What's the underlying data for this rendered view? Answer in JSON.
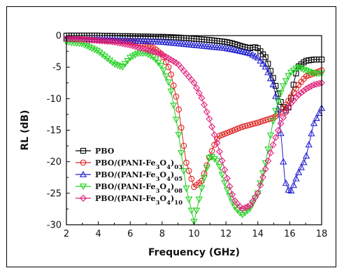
{
  "chart_data": {
    "type": "line",
    "title": "",
    "xlabel": "Frequency (GHz)",
    "ylabel": "RL (dB)",
    "xlim": [
      2,
      18
    ],
    "ylim": [
      -30,
      0
    ],
    "xticks": [
      "2",
      "4",
      "6",
      "8",
      "10",
      "12",
      "14",
      "16",
      "18"
    ],
    "yticks": [
      "0",
      "-5",
      "-10",
      "-15",
      "-20",
      "-25",
      "-30"
    ],
    "grid": false,
    "legend_position": "lower-left",
    "series": [
      {
        "name": "PBO",
        "color": "#000000",
        "marker": "square",
        "x": [
          2,
          4,
          6,
          8,
          9,
          10,
          11,
          12,
          12.5,
          13,
          13.5,
          13.8,
          14,
          14.5,
          15,
          15.5,
          15.8,
          16,
          16.3,
          16.5,
          17,
          17.5,
          18
        ],
        "y": [
          0,
          0,
          -0.1,
          -0.2,
          -0.3,
          -0.5,
          -0.7,
          -1,
          -1.3,
          -1.7,
          -2,
          -1.8,
          -2,
          -3.5,
          -7,
          -11,
          -12,
          -11,
          -7,
          -5,
          -4,
          -3.8,
          -3.8
        ]
      },
      {
        "name": "PBO/(PANI-Fe3O4)03",
        "color": "#e02020",
        "marker": "circle",
        "x": [
          2,
          3,
          4,
          5,
          6,
          7,
          7.5,
          8,
          8.5,
          9,
          9.5,
          10,
          10.5,
          11,
          11.5,
          12,
          13,
          14,
          15,
          15.5,
          16,
          16.5,
          17,
          17.5,
          18
        ],
        "y": [
          -0.5,
          -0.6,
          -0.7,
          -0.8,
          -1,
          -1.4,
          -2,
          -3,
          -5.5,
          -11,
          -20,
          -24,
          -23,
          -19,
          -16,
          -15.5,
          -14.5,
          -13.8,
          -13,
          -12,
          -10,
          -8,
          -6.5,
          -6,
          -5.5
        ]
      },
      {
        "name": "PBO/(PANI-Fe3O4)05",
        "color": "#2020d0",
        "marker": "triangle-up",
        "x": [
          2,
          4,
          6,
          8,
          10,
          12,
          13,
          13.5,
          14,
          14.5,
          15,
          15.3,
          15.5,
          15.7,
          16,
          16.2,
          16.5,
          17,
          17.5,
          18
        ],
        "y": [
          -0.5,
          -0.6,
          -0.8,
          -1,
          -1.5,
          -2,
          -2.5,
          -2.8,
          -3.5,
          -5,
          -8,
          -12,
          -17,
          -23,
          -25,
          -24,
          -22,
          -19.5,
          -14,
          -11.5
        ]
      },
      {
        "name": "PBO/(PANI-Fe3O4)08",
        "color": "#20d020",
        "marker": "triangle-down",
        "x": [
          2,
          3,
          4,
          5,
          5.5,
          6,
          6.5,
          7,
          7.5,
          8,
          8.5,
          9,
          9.5,
          10,
          10.5,
          11,
          11.5,
          12,
          12.5,
          13,
          13.5,
          14,
          14.5,
          15,
          15.5,
          16,
          16.5,
          17,
          17.5,
          18
        ],
        "y": [
          -1,
          -1.3,
          -2.5,
          -4.5,
          -5,
          -3.5,
          -2.8,
          -2.8,
          -3.5,
          -5,
          -8,
          -15,
          -24,
          -29.5,
          -24,
          -19,
          -20,
          -24,
          -27,
          -28.5,
          -27.5,
          -25,
          -20,
          -13,
          -8.5,
          -6,
          -5,
          -5.5,
          -6,
          -6
        ]
      },
      {
        "name": "PBO/(PANI-Fe3O4)10",
        "color": "#e0207a",
        "marker": "diamond",
        "x": [
          2,
          3,
          4,
          5,
          6,
          7,
          8,
          9,
          10,
          10.5,
          11,
          11.5,
          12,
          12.5,
          13,
          13.5,
          14,
          14.5,
          15,
          15.5,
          16,
          16.5,
          17,
          17.5,
          18
        ],
        "y": [
          -0.5,
          -0.6,
          -0.8,
          -1,
          -1.5,
          -2.2,
          -3,
          -4.5,
          -7.5,
          -10,
          -13.5,
          -17.5,
          -22,
          -26,
          -27.5,
          -27,
          -25,
          -21,
          -17,
          -13.5,
          -11,
          -9.5,
          -8.5,
          -7.8,
          -7.5
        ]
      }
    ]
  }
}
